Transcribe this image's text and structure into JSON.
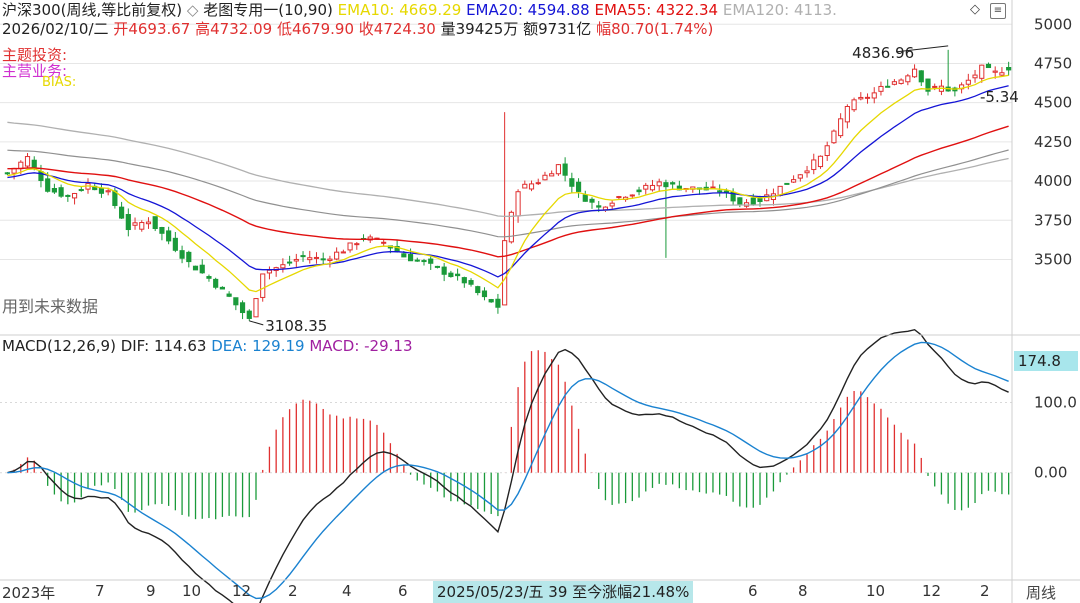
{
  "header": {
    "symbol": "沪深300(周线,等比前复权)",
    "separator": "◇",
    "indicator": "老图专用一(10,90)",
    "ema10": "EMA10: 4669.29",
    "ema20": "EMA20: 4594.88",
    "ema55": "EMA55: 4322.34",
    "ema120": "EMA120: 4113.",
    "colors": {
      "ema10": "#e6d800",
      "ema20": "#1515d6",
      "ema55": "#e01010",
      "ema120": "#b0b0b0"
    }
  },
  "info_row": {
    "date": "2026/02/10/二",
    "open_label": "开",
    "open": "4693.67",
    "high_label": "高",
    "high": "4732.09",
    "low_label": "低",
    "low": "4679.90",
    "close_label": "收",
    "close": "4724.30",
    "volume": "量39425万",
    "amount": "额9731亿",
    "change_label": "幅",
    "change": "80.70(1.74%)"
  },
  "notes": {
    "theme": "主题投资:",
    "business": "主营业务:",
    "bias": "BIAS:",
    "future_data": "用到未来数据"
  },
  "macd_header": {
    "title": "MACD(12,26,9)",
    "dif": "DIF: 114.63",
    "dea": "DEA: 129.19",
    "macd": "MACD: -29.13"
  },
  "price_axis": {
    "ticks": [
      "5000",
      "4750",
      "4500",
      "4250",
      "4000",
      "3750",
      "3500"
    ]
  },
  "macd_axis": {
    "top_value": "174.8",
    "ticks": [
      "100.0",
      "0.00"
    ]
  },
  "annotations": {
    "high": "4836.96",
    "low": "3108.35",
    "bias_value": "-5.34"
  },
  "x_axis": {
    "labels": [
      "2023年",
      "7",
      "9",
      "10",
      "12",
      "2",
      "4",
      "6",
      "6",
      "8",
      "10",
      "12",
      "2"
    ],
    "period_label": "周线"
  },
  "selection": {
    "text": "2025/05/23/五 39 至今涨幅21.48%"
  },
  "chart_data": {
    "type": "candlestick",
    "title": "沪深300(周线,等比前复权)",
    "price_ylim": [
      3100,
      5000
    ],
    "macd_ylim": [
      -150,
      174.8
    ],
    "up_color": "#e03030",
    "down_color": "#1a9a3a",
    "weeks": 150,
    "anchors_close": [
      [
        0,
        4050
      ],
      [
        3,
        4150
      ],
      [
        6,
        3950
      ],
      [
        9,
        3900
      ],
      [
        12,
        3980
      ],
      [
        15,
        3920
      ],
      [
        18,
        3700
      ],
      [
        21,
        3750
      ],
      [
        24,
        3620
      ],
      [
        27,
        3480
      ],
      [
        30,
        3380
      ],
      [
        33,
        3260
      ],
      [
        36,
        3115
      ],
      [
        38,
        3420
      ],
      [
        41,
        3460
      ],
      [
        44,
        3520
      ],
      [
        47,
        3500
      ],
      [
        50,
        3560
      ],
      [
        53,
        3640
      ],
      [
        56,
        3610
      ],
      [
        59,
        3520
      ],
      [
        62,
        3480
      ],
      [
        65,
        3420
      ],
      [
        68,
        3360
      ],
      [
        71,
        3250
      ],
      [
        73,
        3200
      ],
      [
        74,
        3620
      ],
      [
        76,
        3950
      ],
      [
        79,
        4000
      ],
      [
        82,
        4100
      ],
      [
        85,
        3920
      ],
      [
        88,
        3830
      ],
      [
        91,
        3900
      ],
      [
        94,
        3940
      ],
      [
        97,
        3990
      ],
      [
        100,
        3960
      ],
      [
        103,
        3950
      ],
      [
        106,
        3940
      ],
      [
        109,
        3860
      ],
      [
        112,
        3880
      ],
      [
        115,
        3960
      ],
      [
        118,
        4050
      ],
      [
        121,
        4150
      ],
      [
        123,
        4300
      ],
      [
        125,
        4480
      ],
      [
        127,
        4520
      ],
      [
        129,
        4560
      ],
      [
        131,
        4620
      ],
      [
        133,
        4650
      ],
      [
        135,
        4720
      ],
      [
        137,
        4580
      ],
      [
        139,
        4600
      ],
      [
        141,
        4570
      ],
      [
        143,
        4640
      ],
      [
        145,
        4720
      ],
      [
        147,
        4690
      ],
      [
        149,
        4724
      ]
    ],
    "spikes": [
      {
        "week": 74,
        "high": 4440
      },
      {
        "week": 98,
        "low": 3510
      }
    ],
    "series": [
      {
        "name": "EMA10",
        "value": 4669.29,
        "color": "#e6d800"
      },
      {
        "name": "EMA20",
        "value": 4594.88,
        "color": "#1515d6"
      },
      {
        "name": "EMA55",
        "value": 4322.34,
        "color": "#e01010"
      },
      {
        "name": "EMA120",
        "value": 4113,
        "color": "#b0b0b0"
      }
    ],
    "macd": {
      "dif": 114.63,
      "dea": 129.19,
      "macd": -29.13,
      "dif_color": "#222222",
      "dea_color": "#1a82d0"
    },
    "annotations": [
      {
        "text": "4836.96",
        "week": 140,
        "value": 4836.96
      },
      {
        "text": "3108.35",
        "week": 36,
        "value": 3108.35
      }
    ]
  }
}
